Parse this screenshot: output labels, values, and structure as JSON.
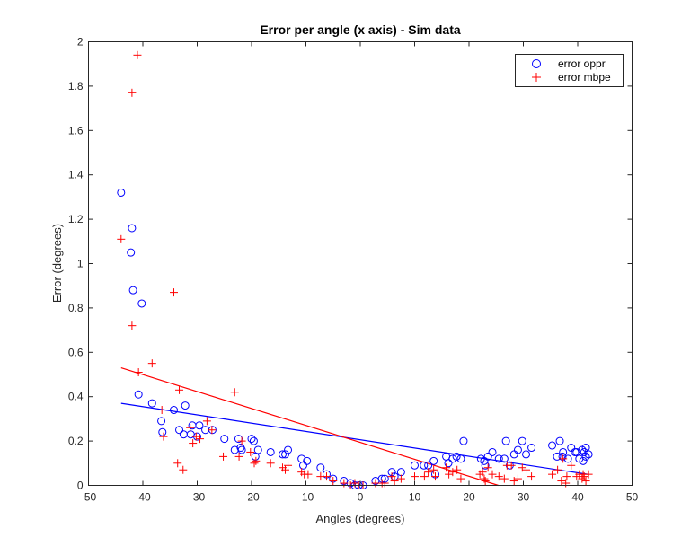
{
  "chart_data": {
    "type": "scatter",
    "title": "Error per angle (x axis)  - Sim data",
    "xlabel": "Angles (degrees)",
    "ylabel": "Error (degrees)",
    "xlim": [
      -50,
      50
    ],
    "ylim": [
      0,
      2
    ],
    "xticks": [
      -50,
      -40,
      -30,
      -20,
      -10,
      0,
      10,
      20,
      30,
      40,
      50
    ],
    "yticks": [
      0,
      0.2,
      0.4,
      0.6,
      0.8,
      1,
      1.2,
      1.4,
      1.6,
      1.8,
      2
    ],
    "grid": false,
    "legend_position": "top-right",
    "series": [
      {
        "name": "error oppr",
        "marker": "circle",
        "color": "#0000ff",
        "points": [
          [
            -44,
            1.32
          ],
          [
            -42,
            1.16
          ],
          [
            -42.2,
            1.05
          ],
          [
            -41.8,
            0.88
          ],
          [
            -40.2,
            0.82
          ],
          [
            -40.8,
            0.41
          ],
          [
            -38.3,
            0.37
          ],
          [
            -36.6,
            0.29
          ],
          [
            -36.4,
            0.24
          ],
          [
            -34.3,
            0.34
          ],
          [
            -33.3,
            0.25
          ],
          [
            -32.5,
            0.23
          ],
          [
            -32.2,
            0.36
          ],
          [
            -31.2,
            0.23
          ],
          [
            -30.9,
            0.27
          ],
          [
            -30,
            0.22
          ],
          [
            -29.6,
            0.27
          ],
          [
            -28.5,
            0.25
          ],
          [
            -27.2,
            0.25
          ],
          [
            -25,
            0.21
          ],
          [
            -23.1,
            0.16
          ],
          [
            -22.4,
            0.21
          ],
          [
            -22,
            0.17
          ],
          [
            -21.8,
            0.16
          ],
          [
            -20,
            0.21
          ],
          [
            -19.6,
            0.2
          ],
          [
            -19.3,
            0.13
          ],
          [
            -18.8,
            0.16
          ],
          [
            -16.5,
            0.15
          ],
          [
            -14.3,
            0.14
          ],
          [
            -13.8,
            0.14
          ],
          [
            -13.3,
            0.16
          ],
          [
            -10.8,
            0.12
          ],
          [
            -10.5,
            0.09
          ],
          [
            -9.8,
            0.11
          ],
          [
            -7.3,
            0.08
          ],
          [
            -6.2,
            0.05
          ],
          [
            -5,
            0.03
          ],
          [
            -3,
            0.02
          ],
          [
            -1.8,
            0.01
          ],
          [
            -1,
            0.0
          ],
          [
            -0.3,
            0.0
          ],
          [
            0.5,
            0.0
          ],
          [
            2.8,
            0.02
          ],
          [
            4,
            0.03
          ],
          [
            4.5,
            0.03
          ],
          [
            5.8,
            0.06
          ],
          [
            6.3,
            0.04
          ],
          [
            7.5,
            0.06
          ],
          [
            10,
            0.09
          ],
          [
            11.7,
            0.09
          ],
          [
            12.5,
            0.09
          ],
          [
            13.5,
            0.11
          ],
          [
            13.8,
            0.05
          ],
          [
            15.8,
            0.13
          ],
          [
            16.2,
            0.1
          ],
          [
            17,
            0.12
          ],
          [
            17.7,
            0.13
          ],
          [
            18.5,
            0.12
          ],
          [
            19,
            0.2
          ],
          [
            22.2,
            0.12
          ],
          [
            22.8,
            0.11
          ],
          [
            23,
            0.09
          ],
          [
            23.5,
            0.13
          ],
          [
            24.3,
            0.15
          ],
          [
            25.5,
            0.12
          ],
          [
            26.5,
            0.12
          ],
          [
            26.8,
            0.2
          ],
          [
            27.5,
            0.09
          ],
          [
            28.3,
            0.14
          ],
          [
            29,
            0.16
          ],
          [
            29.8,
            0.2
          ],
          [
            30.5,
            0.14
          ],
          [
            31.5,
            0.17
          ],
          [
            35.3,
            0.18
          ],
          [
            36.7,
            0.2
          ],
          [
            37.3,
            0.15
          ],
          [
            37.2,
            0.13
          ],
          [
            38.2,
            0.12
          ],
          [
            38.8,
            0.17
          ],
          [
            39.8,
            0.15
          ],
          [
            40.3,
            0.12
          ],
          [
            40.8,
            0.16
          ],
          [
            41.2,
            0.15
          ],
          [
            41.5,
            0.17
          ],
          [
            41.5,
            0.13
          ],
          [
            42,
            0.14
          ],
          [
            36.2,
            0.13
          ],
          [
            39.5,
            0.15
          ],
          [
            41,
            0.11
          ]
        ]
      },
      {
        "name": "error mbpe",
        "marker": "plus",
        "color": "#ff0000",
        "points": [
          [
            -41,
            1.94
          ],
          [
            -42,
            1.77
          ],
          [
            -44,
            1.11
          ],
          [
            -42,
            0.72
          ],
          [
            -34.3,
            0.87
          ],
          [
            -38.3,
            0.55
          ],
          [
            -40.8,
            0.51
          ],
          [
            -33.3,
            0.43
          ],
          [
            -36.5,
            0.34
          ],
          [
            -36.2,
            0.22
          ],
          [
            -33.6,
            0.1
          ],
          [
            -32.6,
            0.07
          ],
          [
            -31.3,
            0.26
          ],
          [
            -30.8,
            0.19
          ],
          [
            -30.2,
            0.22
          ],
          [
            -29.5,
            0.21
          ],
          [
            -28.2,
            0.29
          ],
          [
            -27.3,
            0.25
          ],
          [
            -23.1,
            0.42
          ],
          [
            -25.2,
            0.13
          ],
          [
            -22.3,
            0.13
          ],
          [
            -21.8,
            0.2
          ],
          [
            -20.2,
            0.15
          ],
          [
            -19.5,
            0.1
          ],
          [
            -19.2,
            0.11
          ],
          [
            -16.5,
            0.1
          ],
          [
            -14.3,
            0.08
          ],
          [
            -13.8,
            0.07
          ],
          [
            -13.3,
            0.09
          ],
          [
            -10.8,
            0.06
          ],
          [
            -10.3,
            0.05
          ],
          [
            -9.6,
            0.05
          ],
          [
            -7.3,
            0.04
          ],
          [
            -6.2,
            0.04
          ],
          [
            -5,
            0.02
          ],
          [
            -3,
            0.01
          ],
          [
            -1.8,
            0.0
          ],
          [
            -1,
            0.01
          ],
          [
            -0.3,
            0.0
          ],
          [
            0.5,
            0.0
          ],
          [
            2.8,
            0.01
          ],
          [
            4,
            0.01
          ],
          [
            4.5,
            0.01
          ],
          [
            5.8,
            0.04
          ],
          [
            6.3,
            0.02
          ],
          [
            7.5,
            0.03
          ],
          [
            10,
            0.04
          ],
          [
            11.8,
            0.04
          ],
          [
            12.5,
            0.06
          ],
          [
            13.5,
            0.07
          ],
          [
            13.8,
            0.04
          ],
          [
            15.8,
            0.08
          ],
          [
            16.3,
            0.05
          ],
          [
            17,
            0.06
          ],
          [
            17.8,
            0.07
          ],
          [
            18.5,
            0.03
          ],
          [
            22,
            0.05
          ],
          [
            22.5,
            0.06
          ],
          [
            22.8,
            0.03
          ],
          [
            23.5,
            0.08
          ],
          [
            24.3,
            0.05
          ],
          [
            25.5,
            0.04
          ],
          [
            26.5,
            0.03
          ],
          [
            27,
            0.09
          ],
          [
            27.8,
            0.09
          ],
          [
            28.3,
            0.02
          ],
          [
            29,
            0.03
          ],
          [
            29.8,
            0.08
          ],
          [
            30.5,
            0.07
          ],
          [
            31.5,
            0.04
          ],
          [
            35.3,
            0.05
          ],
          [
            36.3,
            0.07
          ],
          [
            37,
            0.02
          ],
          [
            37.3,
            0.12
          ],
          [
            38,
            0.04
          ],
          [
            38.8,
            0.09
          ],
          [
            39.8,
            0.04
          ],
          [
            40.3,
            0.05
          ],
          [
            40.8,
            0.03
          ],
          [
            41.2,
            0.04
          ],
          [
            41.5,
            0.02
          ],
          [
            42,
            0.05
          ],
          [
            37.8,
            0.01
          ],
          [
            41,
            0.05
          ],
          [
            23,
            0.02
          ]
        ]
      }
    ],
    "fit_lines": [
      {
        "series": "error oppr",
        "color": "#0000ff",
        "points": [
          [
            -44,
            0.37
          ],
          [
            41.8,
            0.05
          ]
        ]
      },
      {
        "series": "error mbpe",
        "color": "#ff0000",
        "points": [
          [
            -44,
            0.53
          ],
          [
            25.4,
            0.0
          ]
        ]
      }
    ]
  }
}
